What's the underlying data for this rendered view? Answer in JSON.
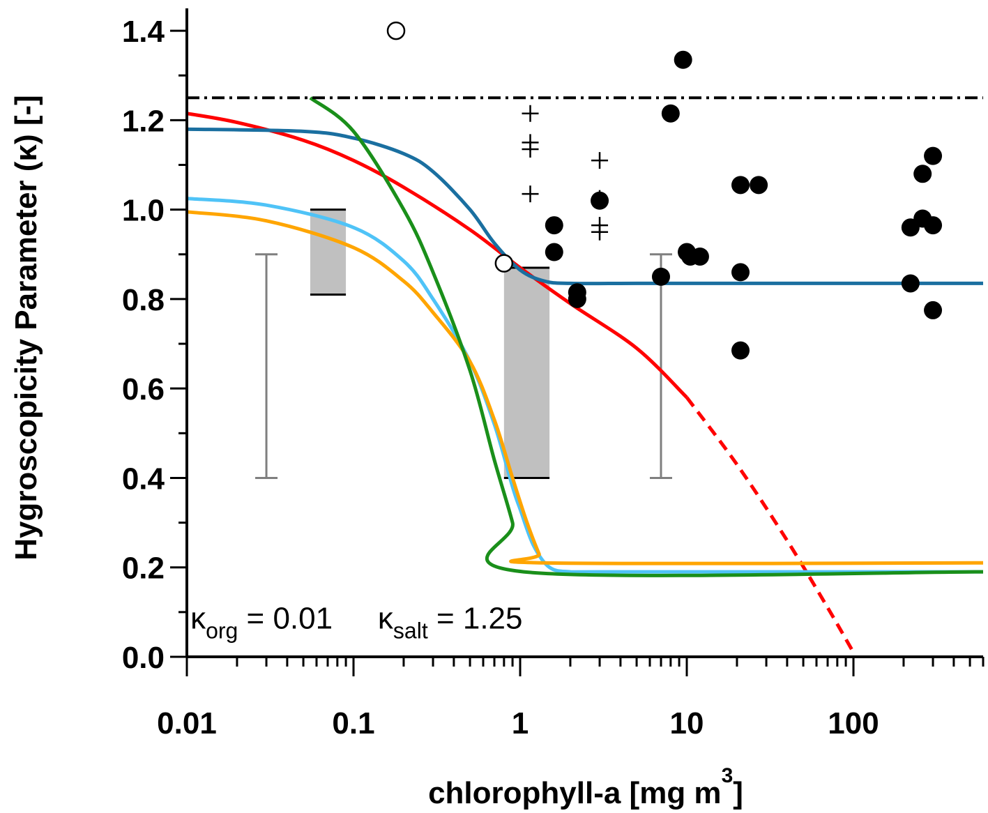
{
  "chart_data": {
    "type": "scatter",
    "title": "",
    "xlabel": "chlorophyll-a [mg m",
    "xlabel_superscript": "3",
    "xlabel_suffix": "]",
    "ylabel": "Hygroscopicity Parameter (κ) [-]",
    "x_scale": "log",
    "xlim": [
      0.01,
      600
    ],
    "ylim": [
      0.0,
      1.45
    ],
    "x_ticks": [
      0.01,
      0.1,
      1,
      10,
      100
    ],
    "x_tick_labels": [
      "0.01",
      "0.1",
      "1",
      "10",
      "100"
    ],
    "y_ticks": [
      0.0,
      0.2,
      0.4,
      0.6,
      0.8,
      1.0,
      1.2,
      1.4
    ],
    "y_tick_labels": [
      "0.0",
      "0.2",
      "0.4",
      "0.6",
      "0.8",
      "1.0",
      "1.2",
      "1.4"
    ],
    "grid": false,
    "annotations": [
      {
        "base": "κ",
        "sub": "org",
        "rest": " = 0.01",
        "x": 0.0105,
        "y": 0.085
      },
      {
        "base": "κ",
        "sub": "salt",
        "rest": " = 1.25",
        "x": 0.14,
        "y": 0.085
      }
    ],
    "reference_line": {
      "y": 1.25,
      "style": "dash-dot",
      "color": "#000000"
    },
    "filled_points": [
      [
        1.6,
        0.965
      ],
      [
        1.6,
        0.905
      ],
      [
        2.2,
        0.815
      ],
      [
        2.2,
        0.8
      ],
      [
        3.0,
        1.02
      ],
      [
        7.0,
        0.85
      ],
      [
        8.0,
        1.215
      ],
      [
        9.5,
        1.335
      ],
      [
        10.0,
        0.905
      ],
      [
        10.5,
        0.895
      ],
      [
        12.0,
        0.895
      ],
      [
        21.0,
        1.055
      ],
      [
        21.0,
        0.86
      ],
      [
        21.0,
        0.685
      ],
      [
        27.0,
        1.055
      ],
      [
        220.0,
        0.96
      ],
      [
        220.0,
        0.835
      ],
      [
        260.0,
        1.08
      ],
      [
        260.0,
        0.98
      ],
      [
        300.0,
        1.12
      ],
      [
        300.0,
        0.965
      ],
      [
        300.0,
        0.775
      ]
    ],
    "open_points": [
      [
        0.18,
        1.4
      ],
      [
        0.8,
        0.88
      ]
    ],
    "plus_points": [
      [
        1.15,
        1.215
      ],
      [
        1.15,
        1.15
      ],
      [
        1.15,
        1.135
      ],
      [
        1.15,
        1.035
      ],
      [
        3.0,
        1.11
      ],
      [
        3.0,
        1.025
      ],
      [
        3.0,
        0.965
      ],
      [
        3.0,
        0.95
      ]
    ],
    "error_bars": [
      {
        "x": 0.03,
        "low": 0.4,
        "high": 0.9,
        "color": "#7f7f7f"
      },
      {
        "x": 7.0,
        "low": 0.4,
        "high": 0.9,
        "color": "#7f7f7f"
      }
    ],
    "range_boxes": [
      {
        "x0": 0.055,
        "x1": 0.09,
        "low": 0.81,
        "high": 1.0,
        "color": "#c0c0c0"
      },
      {
        "x0": 0.8,
        "x1": 1.5,
        "low": 0.4,
        "high": 0.87,
        "color": "#c0c0c0"
      }
    ],
    "series": [
      {
        "color": "#ff0000",
        "style": "solid",
        "x": [
          0.01,
          0.02,
          0.05,
          0.1,
          0.2,
          0.5,
          1,
          2,
          5,
          10
        ],
        "y": [
          1.215,
          1.195,
          1.155,
          1.11,
          1.05,
          0.955,
          0.87,
          0.79,
          0.69,
          0.58
        ]
      },
      {
        "color": "#ff0000",
        "style": "dashed",
        "x": [
          10,
          20,
          40,
          70,
          100
        ],
        "y": [
          0.58,
          0.43,
          0.26,
          0.11,
          0.01
        ]
      },
      {
        "color": "#1a6fa0",
        "style": "solid",
        "x": [
          0.01,
          0.05,
          0.1,
          0.2,
          0.3,
          0.5,
          0.7,
          1.0,
          1.4,
          2,
          5,
          20,
          100,
          600
        ],
        "y": [
          1.18,
          1.175,
          1.16,
          1.125,
          1.085,
          1.0,
          0.925,
          0.865,
          0.84,
          0.835,
          0.835,
          0.835,
          0.835,
          0.835
        ]
      },
      {
        "color": "#4fc3f7",
        "style": "solid",
        "x": [
          0.01,
          0.03,
          0.1,
          0.2,
          0.3,
          0.5,
          0.7,
          0.9,
          1.0,
          1.2,
          1.5,
          2,
          3,
          600
        ],
        "y": [
          1.025,
          1.01,
          0.96,
          0.885,
          0.8,
          0.66,
          0.52,
          0.38,
          0.33,
          0.25,
          0.2,
          0.19,
          0.19,
          0.19
        ]
      },
      {
        "color": "#ffa500",
        "style": "solid",
        "x": [
          0.01,
          0.03,
          0.1,
          0.2,
          0.3,
          0.5,
          0.7,
          0.9,
          1.1,
          1.3,
          1.4,
          600
        ],
        "y": [
          0.995,
          0.975,
          0.915,
          0.84,
          0.77,
          0.66,
          0.53,
          0.4,
          0.3,
          0.23,
          0.21,
          0.21
        ]
      },
      {
        "color": "#1a8f1a",
        "style": "solid",
        "x": [
          0.055,
          0.1,
          0.2,
          0.3,
          0.5,
          0.7,
          0.9,
          1.05,
          600
        ],
        "y": [
          1.25,
          1.175,
          1.0,
          0.86,
          0.64,
          0.44,
          0.3,
          0.19,
          0.19
        ]
      }
    ],
    "colors": {
      "axis": "#000000"
    }
  }
}
